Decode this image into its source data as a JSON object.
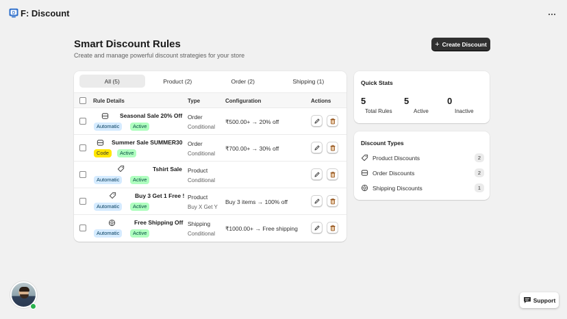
{
  "app": {
    "title": "F: Discount",
    "more_icon": "ellipsis-horizontal-icon"
  },
  "page": {
    "title": "Smart Discount Rules",
    "subtitle": "Create and manage powerful discount strategies for your store",
    "create_button_label": "Create Discount"
  },
  "tabs": [
    {
      "label": "All (5)",
      "active": true
    },
    {
      "label": "Product (2)",
      "active": false
    },
    {
      "label": "Order (2)",
      "active": false
    },
    {
      "label": "Shipping (1)",
      "active": false
    }
  ],
  "table": {
    "headers": {
      "rule_details": "Rule Details",
      "type": "Type",
      "configuration": "Configuration",
      "actions": "Actions"
    },
    "rows": [
      {
        "name": "Seasonal Sale 20% Off",
        "icon": "order-icon",
        "badges": [
          "Automatic",
          "Active"
        ],
        "type": "Order",
        "subtype": "Conditional",
        "config": "₹500.00+ → 20% off"
      },
      {
        "name": "Summer Sale SUMMER30",
        "icon": "order-icon",
        "badges": [
          "Code",
          "Active"
        ],
        "type": "Order",
        "subtype": "Conditional",
        "config": "₹700.00+ → 30% off"
      },
      {
        "name": "Tshirt Sale",
        "icon": "tag-icon",
        "badges": [
          "Automatic",
          "Active"
        ],
        "type": "Product",
        "subtype": "Conditional",
        "config": ""
      },
      {
        "name": "Buy 3 Get 1 Free !",
        "icon": "tag-icon",
        "badges": [
          "Automatic",
          "Active"
        ],
        "type": "Product",
        "subtype": "Buy X Get Y",
        "config": "Buy 3 items → 100% off"
      },
      {
        "name": "Free Shipping Off",
        "icon": "shipping-icon",
        "badges": [
          "Automatic",
          "Active"
        ],
        "type": "Shipping",
        "subtype": "Conditional",
        "config": "₹1000.00+ → Free shipping"
      }
    ]
  },
  "quick_stats": {
    "title": "Quick Stats",
    "total": {
      "value": "5",
      "label": "Total Rules"
    },
    "active": {
      "value": "5",
      "label": "Active"
    },
    "inactive": {
      "value": "0",
      "label": "Inactive"
    }
  },
  "discount_types": {
    "title": "Discount Types",
    "items": [
      {
        "label": "Product Discounts",
        "count": "2",
        "icon": "tag-icon"
      },
      {
        "label": "Order Discounts",
        "count": "2",
        "icon": "order-icon"
      },
      {
        "label": "Shipping Discounts",
        "count": "1",
        "icon": "shipping-icon"
      }
    ]
  },
  "support": {
    "label": "Support",
    "icon": "chat-icon"
  },
  "colors": {
    "primary_button": "#303030",
    "badge_automatic": "#d5ebff",
    "badge_active": "#affebf",
    "badge_code": "#ffe600",
    "online": "#2ab14e"
  }
}
